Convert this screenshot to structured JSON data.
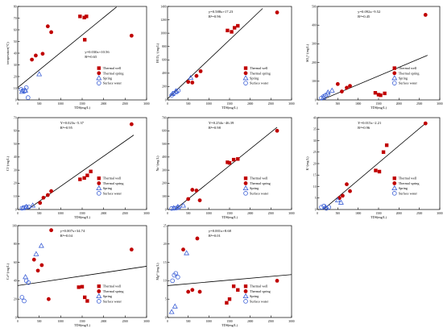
{
  "legend_labels": [
    "Thermal well",
    "Thermal spring",
    "Spring",
    "Surface water"
  ],
  "colors": {
    "thermal": "#c00000",
    "cold": "#3b5fd6",
    "axis": "#000000",
    "fit": "#000000"
  },
  "chart_data": [
    {
      "type": "scatter",
      "ylabel": "temperature(°C)",
      "xlabel": "TDS(mg/L)",
      "xlim": [
        0,
        3000
      ],
      "ylim": [
        0,
        80
      ],
      "xticks": [
        "0",
        "500",
        "1000",
        "1500",
        "2000",
        "2500",
        "3000"
      ],
      "yticks": [
        "0",
        "10",
        "20",
        "30",
        "40",
        "50",
        "60",
        "70",
        "80"
      ],
      "equation": "y=0.030x+10.56",
      "r2": "R²=0.65",
      "fit_line": [
        [
          0,
          10.56
        ],
        [
          2300,
          79.56
        ]
      ],
      "legend": true,
      "series": [
        {
          "name": "Thermal well",
          "marker": "square",
          "points": [
            [
              1450,
              71.5
            ],
            [
              1550,
              70.5
            ],
            [
              1560,
              51.5
            ],
            [
              1600,
              71.5
            ]
          ]
        },
        {
          "name": "Thermal spring",
          "marker": "circle",
          "points": [
            [
              330,
              34.5
            ],
            [
              420,
              38
            ],
            [
              580,
              39.5
            ],
            [
              700,
              63
            ],
            [
              780,
              58
            ],
            [
              2650,
              55
            ]
          ]
        },
        {
          "name": "Spring",
          "marker": "triangle",
          "points": [
            [
              100,
              7
            ],
            [
              180,
              8
            ],
            [
              500,
              22
            ]
          ]
        },
        {
          "name": "Surface water",
          "marker": "open-circle",
          "points": [
            [
              80,
              9
            ],
            [
              120,
              8
            ],
            [
              160,
              7.5
            ],
            [
              200,
              10.5
            ],
            [
              240,
              2
            ]
          ]
        }
      ]
    },
    {
      "type": "scatter",
      "ylabel": "HCO₃⁻(mg/L)",
      "xlabel": "TDS(mg/L)",
      "xlim": [
        0,
        3000
      ],
      "ylim": [
        0,
        1400
      ],
      "xticks": [
        "0",
        "500",
        "1000",
        "1500",
        "2000",
        "2500",
        "3000"
      ],
      "yticks": [
        "0",
        "200",
        "400",
        "600",
        "800",
        "1000",
        "1200",
        "1400"
      ],
      "equation": "y=0.588x+17.23",
      "r2": "R²=0.96",
      "fit_line": [
        [
          0,
          17.23
        ],
        [
          2300,
          1369.6
        ]
      ],
      "legend": true,
      "series": [
        {
          "name": "Thermal well",
          "marker": "square",
          "points": [
            [
              1450,
              1040
            ],
            [
              1550,
              1020
            ],
            [
              1620,
              1080
            ],
            [
              1700,
              1110
            ]
          ]
        },
        {
          "name": "Thermal spring",
          "marker": "circle",
          "points": [
            [
              500,
              270
            ],
            [
              600,
              260
            ],
            [
              700,
              360
            ],
            [
              800,
              430
            ],
            [
              2650,
              1310
            ]
          ]
        },
        {
          "name": "Spring",
          "marker": "triangle",
          "points": [
            [
              120,
              90
            ],
            [
              200,
              130
            ],
            [
              560,
              330
            ]
          ]
        },
        {
          "name": "Surface water",
          "marker": "open-circle",
          "points": [
            [
              100,
              70
            ],
            [
              150,
              100
            ],
            [
              220,
              120
            ],
            [
              260,
              140
            ]
          ]
        }
      ]
    },
    {
      "type": "scatter",
      "ylabel": "SO₄²⁻(mg/L)",
      "xlabel": "TDS(mg/L)",
      "xlim": [
        0,
        3000
      ],
      "ylim": [
        0,
        500
      ],
      "xticks": [
        "0",
        "500",
        "1000",
        "1500",
        "2000",
        "2500",
        "3000"
      ],
      "yticks": [
        "0",
        "100",
        "200",
        "300",
        "400",
        "500"
      ],
      "equation": "y=0.092x−9.52",
      "r2": "R²=0.45",
      "fit_line": [
        [
          100,
          -0.32
        ],
        [
          2700,
          238.88
        ]
      ],
      "legend": true,
      "series": [
        {
          "name": "Thermal well",
          "marker": "square",
          "points": [
            [
              1420,
              38
            ],
            [
              1500,
              28
            ],
            [
              1550,
              25
            ],
            [
              1650,
              35
            ]
          ]
        },
        {
          "name": "Thermal spring",
          "marker": "circle",
          "points": [
            [
              500,
              85
            ],
            [
              600,
              45
            ],
            [
              720,
              65
            ],
            [
              800,
              75
            ],
            [
              2650,
              455
            ]
          ]
        },
        {
          "name": "Spring",
          "marker": "triangle",
          "points": [
            [
              150,
              12
            ],
            [
              260,
              40
            ],
            [
              360,
              50
            ]
          ]
        },
        {
          "name": "Surface water",
          "marker": "open-circle",
          "points": [
            [
              100,
              10
            ],
            [
              150,
              18
            ],
            [
              200,
              25
            ],
            [
              250,
              30
            ]
          ]
        }
      ]
    },
    {
      "type": "scatter",
      "ylabel": "Cl⁻(mg/L)",
      "xlabel": "TDS(mg/L)",
      "xlim": [
        0,
        3000
      ],
      "ylim": [
        0,
        70
      ],
      "xticks": [
        "0",
        "500",
        "1000",
        "1500",
        "2000",
        "2500",
        "3000"
      ],
      "yticks": [
        "0",
        "10",
        "20",
        "30",
        "40",
        "50",
        "60",
        "70"
      ],
      "equation": "Y=0.023x−5.37",
      "r2": "R²=0.95",
      "fit_line": [
        [
          230,
          0
        ],
        [
          2700,
          56.73
        ]
      ],
      "legend": true,
      "series": [
        {
          "name": "Thermal well",
          "marker": "square",
          "points": [
            [
              1450,
              23
            ],
            [
              1550,
              24
            ],
            [
              1620,
              26
            ],
            [
              1700,
              29
            ]
          ]
        },
        {
          "name": "Thermal spring",
          "marker": "circle",
          "points": [
            [
              520,
              5
            ],
            [
              600,
              9
            ],
            [
              700,
              11
            ],
            [
              780,
              14
            ],
            [
              2650,
              65
            ]
          ]
        },
        {
          "name": "Spring",
          "marker": "triangle",
          "points": [
            [
              120,
              1
            ],
            [
              200,
              2
            ],
            [
              350,
              3
            ]
          ]
        },
        {
          "name": "Surface water",
          "marker": "open-circle",
          "points": [
            [
              100,
              1
            ],
            [
              150,
              1.5
            ],
            [
              200,
              2
            ],
            [
              260,
              2
            ]
          ]
        }
      ]
    },
    {
      "type": "scatter",
      "ylabel": "Na⁺(mg/L)",
      "xlabel": "TDS(mg/L)",
      "xlim": [
        0,
        3000
      ],
      "ylim": [
        0,
        700
      ],
      "xticks": [
        "0",
        "500",
        "1000",
        "1500",
        "2000",
        "2500",
        "3000"
      ],
      "yticks": [
        "0",
        "100",
        "200",
        "300",
        "400",
        "500",
        "600",
        "700"
      ],
      "equation": "Y=0.254x−46.39",
      "r2": "R²=0.98",
      "fit_line": [
        [
          183,
          0
        ],
        [
          2650,
          626.7
        ]
      ],
      "legend": true,
      "series": [
        {
          "name": "Thermal well",
          "marker": "square",
          "points": [
            [
              1450,
              360
            ],
            [
              1500,
              355
            ],
            [
              1600,
              380
            ],
            [
              1700,
              385
            ]
          ]
        },
        {
          "name": "Thermal spring",
          "marker": "circle",
          "points": [
            [
              500,
              80
            ],
            [
              600,
              150
            ],
            [
              700,
              145
            ],
            [
              780,
              70
            ],
            [
              2650,
              600
            ]
          ]
        },
        {
          "name": "Spring",
          "marker": "triangle",
          "points": [
            [
              150,
              10
            ],
            [
              250,
              20
            ],
            [
              380,
              30
            ]
          ]
        },
        {
          "name": "Surface water",
          "marker": "open-circle",
          "points": [
            [
              100,
              8
            ],
            [
              160,
              10
            ],
            [
              220,
              12
            ],
            [
              270,
              15
            ]
          ]
        }
      ]
    },
    {
      "type": "scatter",
      "ylabel": "K⁺(mg/L)",
      "xlabel": "TDS(mg/L)",
      "xlim": [
        0,
        3000
      ],
      "ylim": [
        0,
        40
      ],
      "xticks": [
        "0",
        "500",
        "1000",
        "1500",
        "2000",
        "2500",
        "3000"
      ],
      "yticks": [
        "0",
        "5",
        "10",
        "15",
        "20",
        "25",
        "30",
        "35",
        "40"
      ],
      "equation": "Y=0.015x−2.21",
      "r2": "R²=0.96",
      "fit_line": [
        [
          147,
          0
        ],
        [
          2650,
          37.54
        ]
      ],
      "legend": true,
      "series": [
        {
          "name": "Thermal well",
          "marker": "square",
          "points": [
            [
              1430,
              17
            ],
            [
              1520,
              16.5
            ],
            [
              1620,
              25
            ],
            [
              1700,
              28
            ]
          ]
        },
        {
          "name": "Thermal spring",
          "marker": "circle",
          "points": [
            [
              540,
              5
            ],
            [
              620,
              6
            ],
            [
              720,
              11
            ],
            [
              800,
              8
            ],
            [
              2650,
              37.5
            ]
          ]
        },
        {
          "name": "Spring",
          "marker": "triangle",
          "points": [
            [
              200,
              1
            ],
            [
              500,
              4
            ],
            [
              580,
              3
            ]
          ]
        },
        {
          "name": "Surface water",
          "marker": "open-circle",
          "points": [
            [
              100,
              1
            ],
            [
              160,
              1.5
            ],
            [
              220,
              0.5
            ],
            [
              280,
              1
            ]
          ]
        }
      ]
    },
    {
      "type": "scatter",
      "ylabel": "Ca²⁺(mg/L)",
      "xlabel": "TDS(mg/L)",
      "xlim": [
        0,
        3000
      ],
      "ylim": [
        0,
        100
      ],
      "xticks": [
        "0",
        "500",
        "1000",
        "1500",
        "2000",
        "2500",
        "3000"
      ],
      "yticks": [
        "0",
        "20",
        "40",
        "60",
        "80",
        "100"
      ],
      "equation": "y=0.007x+34.74",
      "r2": "R²=0.04",
      "fit_line": [
        [
          0,
          34.74
        ],
        [
          3000,
          55.74
        ]
      ],
      "legend": true,
      "series": [
        {
          "name": "Thermal well",
          "marker": "square",
          "points": [
            [
              1420,
              33
            ],
            [
              1500,
              33.5
            ],
            [
              1560,
              22
            ],
            [
              1620,
              18
            ]
          ]
        },
        {
          "name": "Thermal spring",
          "marker": "circle",
          "points": [
            [
              380,
              63
            ],
            [
              470,
              51
            ],
            [
              560,
              57
            ],
            [
              720,
              20
            ],
            [
              780,
              95
            ],
            [
              2650,
              74
            ]
          ]
        },
        {
          "name": "Spring",
          "marker": "triangle",
          "points": [
            [
              180,
              44
            ],
            [
              430,
              69
            ],
            [
              550,
              78
            ]
          ]
        },
        {
          "name": "Surface water",
          "marker": "open-circle",
          "points": [
            [
              100,
              22
            ],
            [
              150,
              18
            ],
            [
              200,
              40
            ],
            [
              250,
              38
            ]
          ]
        }
      ]
    },
    {
      "type": "scatter",
      "ylabel": "Mg²⁺(mg/L)",
      "xlabel": "TDS(mg/L)",
      "xlim": [
        0,
        3000
      ],
      "ylim": [
        0,
        25
      ],
      "xticks": [
        "0",
        "500",
        "1000",
        "1500",
        "2000",
        "2500",
        "3000"
      ],
      "yticks": [
        "0",
        "5",
        "10",
        "15",
        "20",
        "25"
      ],
      "equation": "y=0.001x+8.68",
      "r2": "R²=0.01",
      "fit_line": [
        [
          0,
          8.68
        ],
        [
          3000,
          11.68
        ]
      ],
      "legend": true,
      "series": [
        {
          "name": "Thermal well",
          "marker": "square",
          "points": [
            [
              1430,
              4
            ],
            [
              1500,
              5
            ],
            [
              1600,
              8.5
            ],
            [
              1700,
              7.5
            ]
          ]
        },
        {
          "name": "Thermal spring",
          "marker": "circle",
          "points": [
            [
              380,
              18.5
            ],
            [
              500,
              7
            ],
            [
              600,
              7.5
            ],
            [
              720,
              21.5
            ],
            [
              780,
              7
            ],
            [
              2650,
              10
            ]
          ]
        },
        {
          "name": "Spring",
          "marker": "triangle",
          "points": [
            [
              100,
              1.5
            ],
            [
              180,
              3
            ],
            [
              460,
              17.5
            ]
          ]
        },
        {
          "name": "Surface water",
          "marker": "open-circle",
          "points": [
            [
              120,
              10
            ],
            [
              160,
              11.5
            ],
            [
              200,
              12
            ],
            [
              250,
              11
            ]
          ]
        }
      ]
    }
  ]
}
